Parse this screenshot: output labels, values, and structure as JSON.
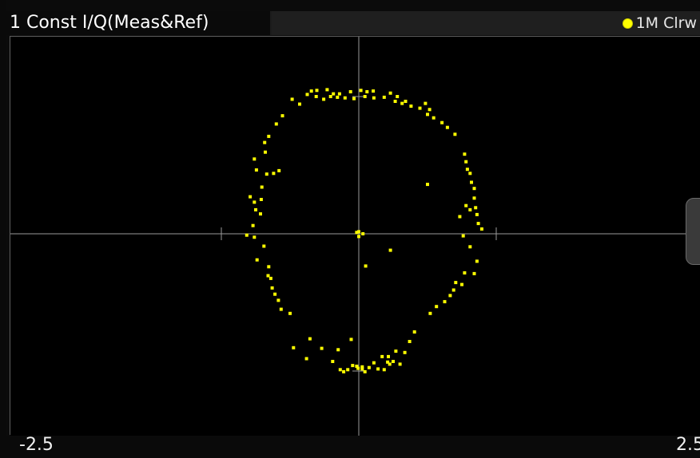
{
  "window": {
    "title": "1 Const I/Q(Meas&Ref)",
    "trace_label": "1M Clrw",
    "trace_color": "#ffff00",
    "background": "#000000",
    "grid_color": "#a8a8a8"
  },
  "chart_data": {
    "type": "scatter",
    "title": "1 Const I/Q(Meas&Ref)",
    "xlabel": "",
    "ylabel": "",
    "xlim": [
      -2.5,
      2.5
    ],
    "ylim": [
      -2.5,
      2.5
    ],
    "x_tick_labels": [
      "-2.5",
      "2.5"
    ],
    "grid": true,
    "legend": "top-right",
    "series": [
      {
        "name": "1M Clrw",
        "color": "#ffff00",
        "points": [
          [
            -0.69,
            2.08
          ],
          [
            -0.61,
            2.09
          ],
          [
            -0.46,
            2.1
          ],
          [
            -0.37,
            2.04
          ],
          [
            -0.28,
            2.04
          ],
          [
            -0.12,
            2.07
          ],
          [
            0.03,
            2.09
          ],
          [
            0.12,
            2.07
          ],
          [
            0.21,
            2.08
          ],
          [
            0.46,
            2.05
          ],
          [
            0.56,
            2.0
          ],
          [
            0.68,
            1.93
          ],
          [
            -0.75,
            2.03
          ],
          [
            -0.62,
            2.0
          ],
          [
            -0.51,
            1.96
          ],
          [
            -0.31,
            1.99
          ],
          [
            -0.2,
            1.98
          ],
          [
            -0.07,
            1.97
          ],
          [
            0.09,
            2.0
          ],
          [
            0.22,
            1.98
          ],
          [
            0.37,
            1.99
          ],
          [
            0.53,
            1.93
          ],
          [
            0.63,
            1.9
          ],
          [
            0.76,
            1.86
          ],
          [
            -0.97,
            1.96
          ],
          [
            -0.86,
            1.89
          ],
          [
            -1.11,
            1.72
          ],
          [
            -1.2,
            1.6
          ],
          [
            -1.31,
            1.42
          ],
          [
            -1.37,
            1.33
          ],
          [
            0.89,
            1.83
          ],
          [
            1.0,
            1.74
          ],
          [
            1.09,
            1.69
          ],
          [
            1.21,
            1.62
          ],
          [
            1.29,
            1.55
          ],
          [
            1.4,
            1.45
          ],
          [
            -1.52,
            1.09
          ],
          [
            -1.49,
            0.93
          ],
          [
            -1.34,
            0.87
          ],
          [
            -1.24,
            0.88
          ],
          [
            -1.16,
            0.92
          ],
          [
            -1.41,
            0.68
          ],
          [
            1.54,
            1.16
          ],
          [
            1.56,
            1.05
          ],
          [
            1.58,
            0.94
          ],
          [
            1.62,
            0.88
          ],
          [
            1.64,
            0.75
          ],
          [
            1.68,
            0.66
          ],
          [
            -1.58,
            0.54
          ],
          [
            -1.52,
            0.46
          ],
          [
            -1.42,
            0.5
          ],
          [
            -1.5,
            0.35
          ],
          [
            -1.43,
            0.29
          ],
          [
            -1.54,
            0.12
          ],
          [
            1.56,
            0.41
          ],
          [
            1.62,
            0.35
          ],
          [
            1.7,
            0.38
          ],
          [
            1.72,
            0.28
          ],
          [
            1.74,
            0.15
          ],
          [
            1.79,
            0.07
          ],
          [
            -1.63,
            -0.02
          ],
          [
            -1.52,
            -0.05
          ],
          [
            -1.38,
            -0.18
          ],
          [
            -1.48,
            -0.38
          ],
          [
            -1.31,
            -0.48
          ],
          [
            -1.32,
            -0.61
          ],
          [
            1.52,
            -0.03
          ],
          [
            1.62,
            -0.19
          ],
          [
            1.72,
            -0.4
          ],
          [
            1.68,
            -0.58
          ],
          [
            1.54,
            -0.57
          ],
          [
            1.5,
            -0.74
          ],
          [
            -1.28,
            -0.65
          ],
          [
            -1.26,
            -0.79
          ],
          [
            -1.22,
            -0.88
          ],
          [
            -1.17,
            -0.97
          ],
          [
            -1.13,
            -1.1
          ],
          [
            -1.0,
            -1.16
          ],
          [
            1.41,
            -0.71
          ],
          [
            1.38,
            -0.82
          ],
          [
            1.33,
            -0.9
          ],
          [
            1.25,
            -0.99
          ],
          [
            1.13,
            -1.06
          ],
          [
            1.04,
            -1.16
          ],
          [
            -0.95,
            -1.66
          ],
          [
            -0.76,
            -1.82
          ],
          [
            -0.71,
            -1.53
          ],
          [
            -0.54,
            -1.67
          ],
          [
            -0.38,
            -1.86
          ],
          [
            -0.3,
            -1.69
          ],
          [
            0.81,
            -1.43
          ],
          [
            0.74,
            -1.57
          ],
          [
            0.67,
            -1.73
          ],
          [
            0.54,
            -1.71
          ],
          [
            0.43,
            -1.79
          ],
          [
            0.34,
            -1.79
          ],
          [
            -0.27,
            -1.98
          ],
          [
            -0.22,
            -2.01
          ],
          [
            -0.16,
            -1.98
          ],
          [
            -0.09,
            -1.92
          ],
          [
            -0.03,
            -1.93
          ],
          [
            0.05,
            -1.97
          ],
          [
            0.09,
            -2.01
          ],
          [
            0.15,
            -1.95
          ],
          [
            0.22,
            -1.88
          ],
          [
            0.28,
            -1.97
          ],
          [
            0.37,
            -1.98
          ],
          [
            0.45,
            -1.9
          ],
          [
            -0.11,
            -1.54
          ],
          [
            -0.01,
            -1.96
          ],
          [
            0.05,
            -1.94
          ],
          [
            0.42,
            -1.87
          ],
          [
            0.5,
            -1.86
          ],
          [
            0.6,
            -1.9
          ],
          [
            1.03,
            1.81
          ],
          [
            -0.41,
            2.0
          ],
          [
            0.97,
            1.9
          ],
          [
            1.47,
            0.25
          ],
          [
            1.68,
            0.52
          ],
          [
            -1.36,
            1.19
          ],
          [
            0.0,
            0.03
          ],
          [
            0.06,
            0.0
          ],
          [
            -0.03,
            0.02
          ],
          [
            0.0,
            -0.04
          ],
          [
            0.1,
            -0.47
          ],
          [
            0.46,
            -0.24
          ],
          [
            1.0,
            0.72
          ]
        ]
      }
    ]
  }
}
